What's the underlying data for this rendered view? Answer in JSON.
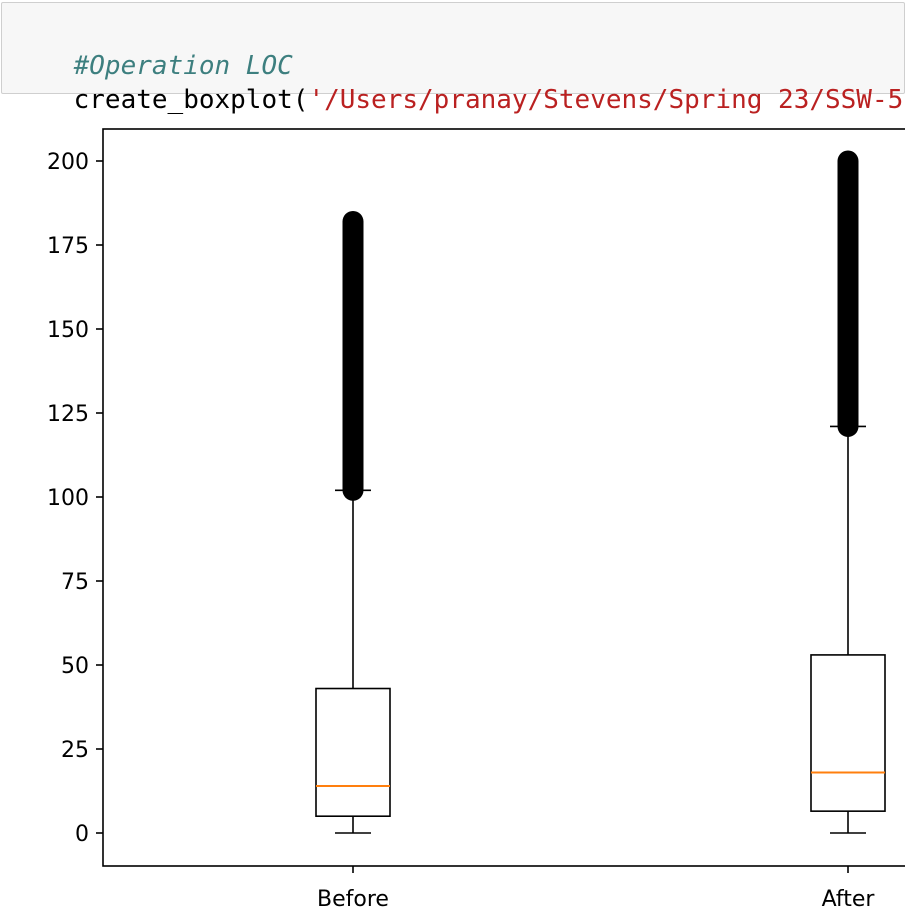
{
  "code_cell": {
    "comment": "#Operation LOC",
    "call_name": "create_boxplot(",
    "call_string": "'/Users/pranay/Stevens/Spring 23/SSW-5"
  },
  "chart_data": {
    "type": "boxplot",
    "categories": [
      "Before",
      "After"
    ],
    "boxes": [
      {
        "category": "Before",
        "whisker_low": 0,
        "q1": 5,
        "median": 14,
        "q3": 43,
        "whisker_high": 102,
        "outliers_range": [
          102,
          182
        ]
      },
      {
        "category": "After",
        "whisker_low": 0,
        "q1": 6.5,
        "median": 18,
        "q3": 53,
        "whisker_high": 121,
        "outliers_range": [
          121,
          200
        ]
      }
    ],
    "ylim": [
      -10,
      210
    ],
    "yticks": [
      0,
      25,
      50,
      75,
      100,
      125,
      150,
      175,
      200
    ],
    "colors": {
      "box": "#000000",
      "median": "#ff7f0e",
      "outliers": "#000000"
    }
  }
}
